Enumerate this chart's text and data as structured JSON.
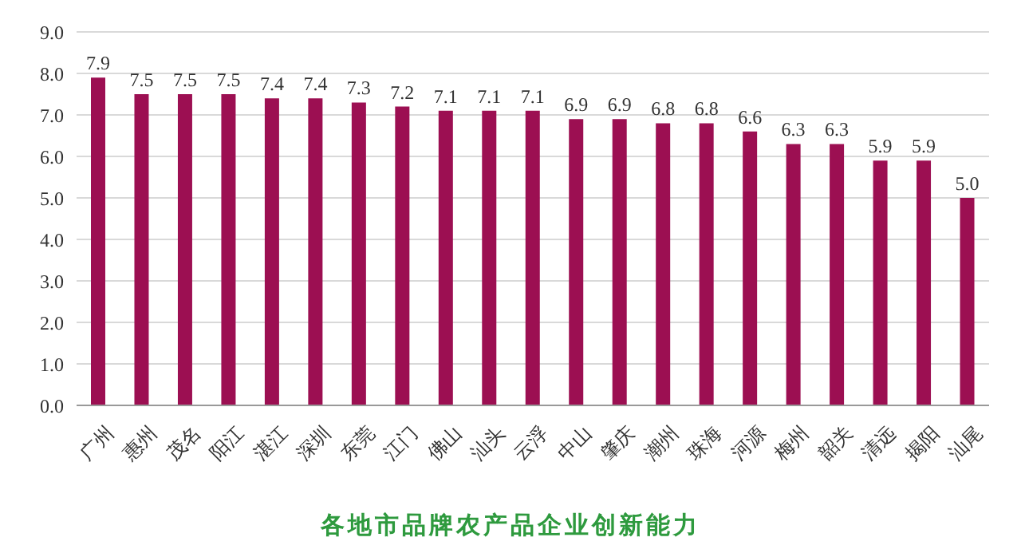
{
  "chart_data": {
    "type": "bar",
    "title": "各地市品牌农产品企业创新能力",
    "categories": [
      "广州",
      "惠州",
      "茂名",
      "阳江",
      "湛江",
      "深圳",
      "东莞",
      "江门",
      "佛山",
      "汕头",
      "云浮",
      "中山",
      "肇庆",
      "潮州",
      "珠海",
      "河源",
      "梅州",
      "韶关",
      "清远",
      "揭阳",
      "汕尾"
    ],
    "values": [
      7.9,
      7.5,
      7.5,
      7.5,
      7.4,
      7.4,
      7.3,
      7.2,
      7.1,
      7.1,
      7.1,
      6.9,
      6.9,
      6.8,
      6.8,
      6.6,
      6.3,
      6.3,
      5.9,
      5.9,
      5.0
    ],
    "value_labels": [
      "7.9",
      "7.5",
      "7.5",
      "7.5",
      "7.4",
      "7.4",
      "7.3",
      "7.2",
      "7.1",
      "7.1",
      "7.1",
      "6.9",
      "6.9",
      "6.8",
      "6.8",
      "6.6",
      "6.3",
      "6.3",
      "5.9",
      "5.9",
      "5.0"
    ],
    "color": "#9c0f52",
    "ylim": [
      0,
      9
    ],
    "yticks": [
      {
        "value": 0,
        "label": "0.0"
      },
      {
        "value": 1,
        "label": "1.0"
      },
      {
        "value": 2,
        "label": "2.0"
      },
      {
        "value": 3,
        "label": "3.0"
      },
      {
        "value": 4,
        "label": "4.0"
      },
      {
        "value": 5,
        "label": "5.0"
      },
      {
        "value": 6,
        "label": "6.0"
      },
      {
        "value": 7,
        "label": "7.0"
      },
      {
        "value": 8,
        "label": "8.0"
      },
      {
        "value": 9,
        "label": "9.0"
      }
    ],
    "grid": "y"
  }
}
